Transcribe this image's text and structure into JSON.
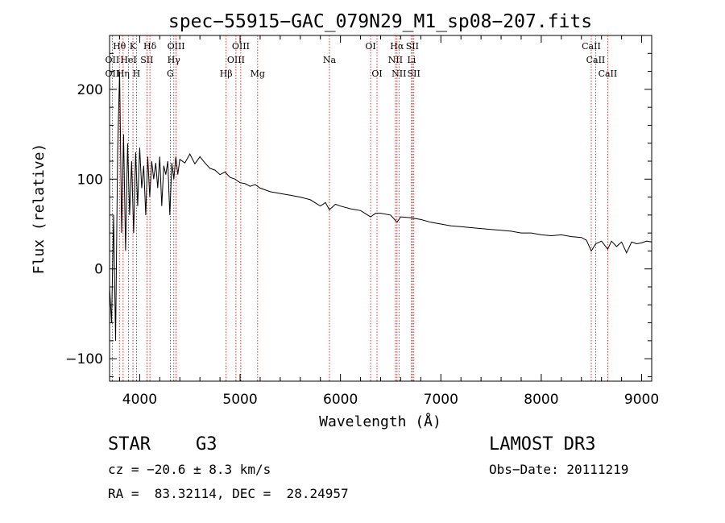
{
  "chart_data": {
    "type": "line",
    "title": "spec−55915−GAC_079N29_M1_sp08−207.fits",
    "xlabel": "Wavelength (Å)",
    "ylabel": "Flux (relative)",
    "xlim": [
      3700,
      9100
    ],
    "ylim": [
      -125,
      260
    ],
    "grid": false,
    "x_ticks": [
      4000,
      5000,
      6000,
      7000,
      8000,
      9000
    ],
    "x_tick_labels": [
      "4000",
      "5000",
      "6000",
      "7000",
      "8000",
      "9000"
    ],
    "y_ticks": [
      -100,
      0,
      100,
      200
    ],
    "y_tick_labels": [
      "−100",
      "0",
      "100",
      "200"
    ],
    "series": [
      {
        "name": "flux",
        "x": [
          3700,
          3720,
          3740,
          3760,
          3780,
          3800,
          3820,
          3840,
          3860,
          3880,
          3900,
          3920,
          3940,
          3960,
          3980,
          4000,
          4020,
          4040,
          4060,
          4080,
          4100,
          4120,
          4140,
          4160,
          4180,
          4200,
          4220,
          4240,
          4260,
          4280,
          4300,
          4320,
          4340,
          4360,
          4380,
          4400,
          4450,
          4500,
          4550,
          4600,
          4650,
          4700,
          4750,
          4800,
          4850,
          4900,
          4950,
          5000,
          5050,
          5100,
          5150,
          5200,
          5300,
          5400,
          5500,
          5600,
          5700,
          5800,
          5850,
          5890,
          5950,
          6000,
          6100,
          6200,
          6300,
          6350,
          6400,
          6500,
          6563,
          6600,
          6700,
          6800,
          6900,
          7000,
          7100,
          7200,
          7300,
          7400,
          7500,
          7600,
          7700,
          7800,
          7900,
          8000,
          8100,
          8200,
          8300,
          8400,
          8450,
          8498,
          8542,
          8600,
          8662,
          8700,
          8750,
          8800,
          8850,
          8900,
          8950,
          9000,
          9050,
          9100
        ],
        "values": [
          -20,
          -60,
          60,
          -80,
          130,
          220,
          40,
          150,
          20,
          140,
          60,
          120,
          40,
          130,
          70,
          135,
          90,
          115,
          60,
          125,
          80,
          120,
          100,
          118,
          90,
          125,
          70,
          115,
          105,
          120,
          60,
          118,
          100,
          125,
          105,
          122,
          118,
          128,
          117,
          125,
          118,
          112,
          110,
          105,
          108,
          102,
          100,
          96,
          95,
          92,
          94,
          90,
          86,
          84,
          82,
          80,
          77,
          70,
          74,
          66,
          72,
          70,
          67,
          65,
          58,
          62,
          62,
          60,
          52,
          58,
          57,
          55,
          52,
          50,
          48,
          47,
          46,
          45,
          44,
          43,
          42,
          40,
          40,
          38,
          37,
          38,
          36,
          35,
          32,
          20,
          28,
          31,
          22,
          31,
          25,
          30,
          18,
          30,
          28,
          29,
          31,
          30
        ]
      }
    ],
    "annotations": [
      {
        "label": "Hθ",
        "x": 3798,
        "row": 1
      },
      {
        "label": "K",
        "x": 3933,
        "row": 1
      },
      {
        "label": "Hδ",
        "x": 4102,
        "row": 1
      },
      {
        "label": "OIII",
        "x": 4363,
        "row": 1
      },
      {
        "label": "OIII",
        "x": 5007,
        "row": 1
      },
      {
        "label": "OI",
        "x": 6300,
        "row": 1
      },
      {
        "label": "Hα",
        "x": 6563,
        "row": 1
      },
      {
        "label": "SII",
        "x": 6716,
        "row": 1
      },
      {
        "label": "CaII",
        "x": 8498,
        "row": 1
      },
      {
        "label": "OII",
        "x": 3727,
        "row": 2
      },
      {
        "label": "HeI",
        "x": 3889,
        "row": 2
      },
      {
        "label": "SII",
        "x": 4072,
        "row": 2
      },
      {
        "label": "Hγ",
        "x": 4340,
        "row": 2
      },
      {
        "label": "OIII",
        "x": 4959,
        "row": 2
      },
      {
        "label": "Na",
        "x": 5890,
        "row": 2
      },
      {
        "label": "NII",
        "x": 6548,
        "row": 2
      },
      {
        "label": "Li",
        "x": 6708,
        "row": 2
      },
      {
        "label": "CaII",
        "x": 8542,
        "row": 2
      },
      {
        "label": "OII",
        "x": 3727,
        "row": 3
      },
      {
        "label": "Hη",
        "x": 3835,
        "row": 3
      },
      {
        "label": "H",
        "x": 3968,
        "row": 3
      },
      {
        "label": "G",
        "x": 4305,
        "row": 3
      },
      {
        "label": "Hβ",
        "x": 4861,
        "row": 3
      },
      {
        "label": "Mg",
        "x": 5175,
        "row": 3
      },
      {
        "label": "OI",
        "x": 6364,
        "row": 3
      },
      {
        "label": "NII",
        "x": 6583,
        "row": 3
      },
      {
        "label": "SII",
        "x": 6731,
        "row": 3
      },
      {
        "label": "CaII",
        "x": 8662,
        "row": 3
      }
    ],
    "line_color": "#000000",
    "annotation_line_color": "#cc0000"
  },
  "info": {
    "class_label": "STAR",
    "subclass": "G3",
    "redshift_line": "cz = −20.6 ± 8.3 km/s",
    "coords_line": "RA =  83.32114, DEC =  28.24957",
    "survey": "LAMOST DR3",
    "obs_date": "Obs−Date: 20111219"
  }
}
